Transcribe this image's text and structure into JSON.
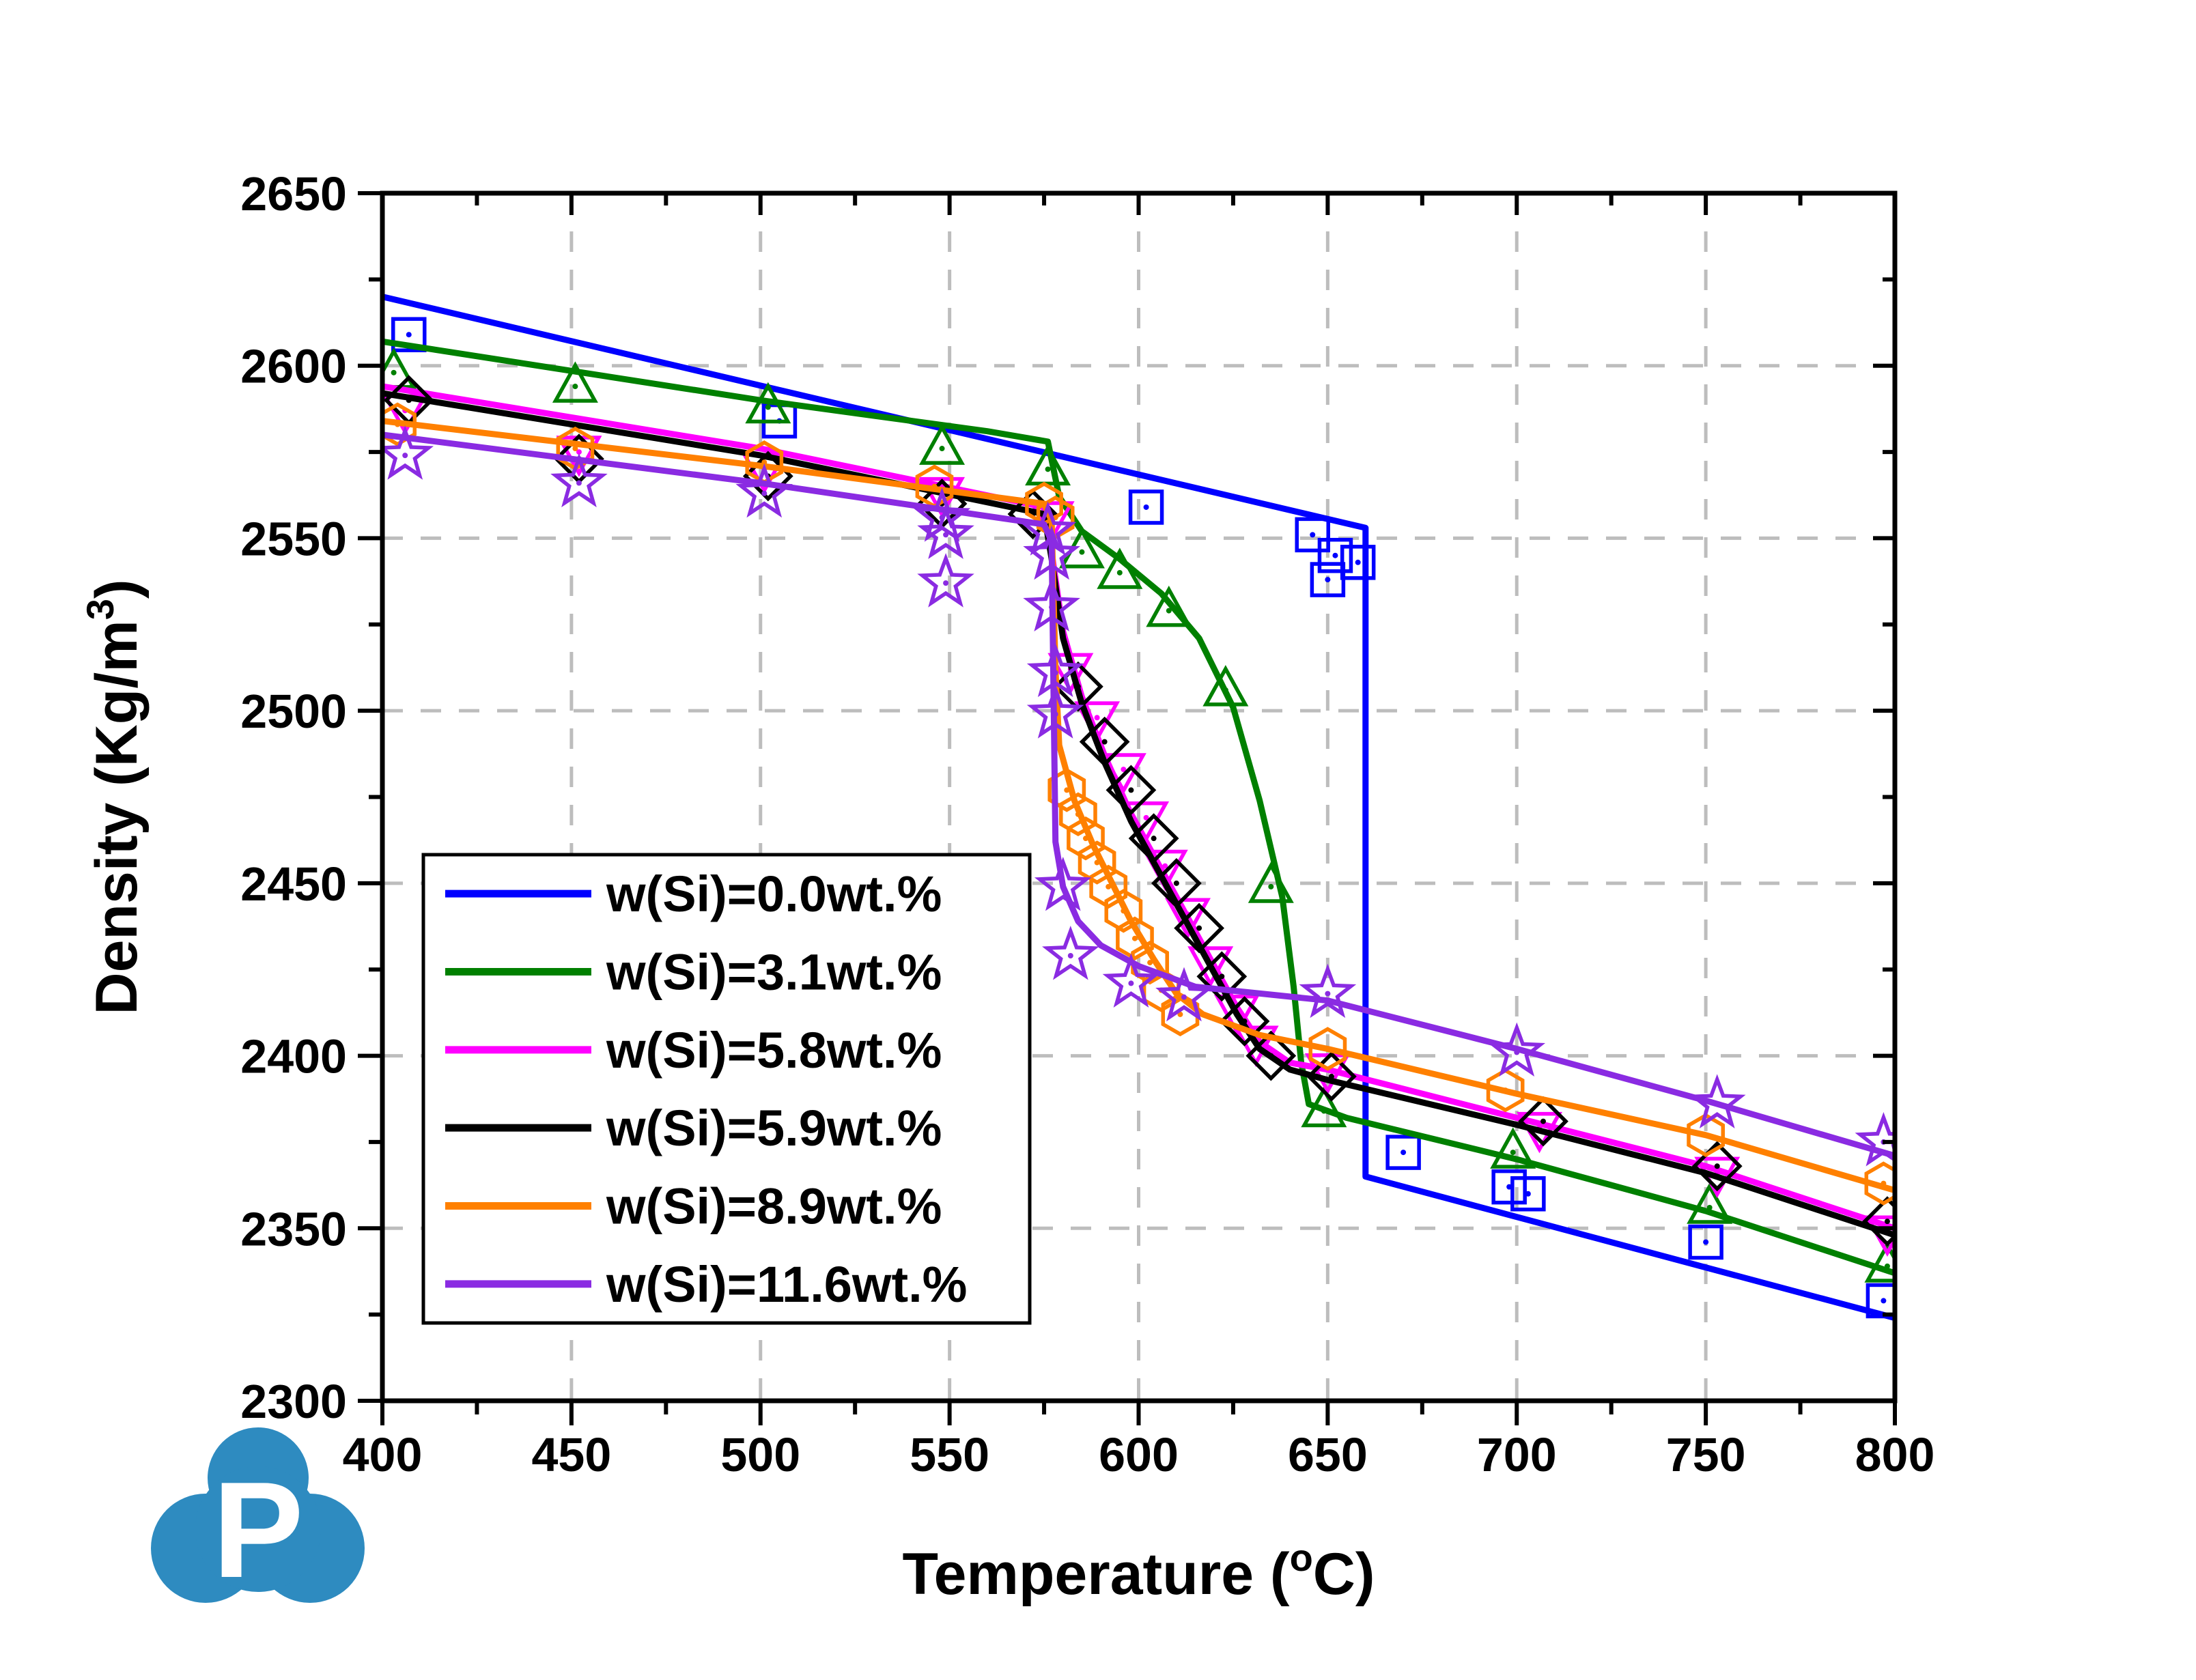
{
  "figure": {
    "background": "#FFFFFF",
    "frame_color": "#000000",
    "grid_color": "#BDBDBD",
    "text_color": "#000000"
  },
  "axes": {
    "x": {
      "title_prefix": "Temperature (",
      "title_sup": "o",
      "title_suffix": "C)",
      "min": 400,
      "max": 800,
      "major_step": 50,
      "minor_step": 25,
      "tick_labels": [
        "400",
        "450",
        "500",
        "550",
        "600",
        "650",
        "700",
        "750",
        "800"
      ]
    },
    "y": {
      "title_prefix": "Density (Kg/m",
      "title_sup": "3",
      "title_suffix": ")",
      "min": 2300,
      "max": 2650,
      "major_step": 50,
      "minor_step": 25,
      "tick_labels": [
        "2300",
        "2350",
        "2400",
        "2450",
        "2500",
        "2550",
        "2600",
        "2650"
      ]
    }
  },
  "legend": {
    "entries": [
      {
        "label": "w(Si)=0.0wt.%",
        "color": "#0000FF"
      },
      {
        "label": "w(Si)=3.1wt.%",
        "color": "#008000"
      },
      {
        "label": "w(Si)=5.8wt.%",
        "color": "#FF00FF"
      },
      {
        "label": "w(Si)=5.9wt.%",
        "color": "#000000"
      },
      {
        "label": "w(Si)=8.9wt.%",
        "color": "#FF8000"
      },
      {
        "label": "w(Si)=11.6wt.%",
        "color": "#8A2BE2"
      }
    ]
  },
  "logo": {
    "letter": "P",
    "color": "#2E8BC0"
  },
  "chart_data": {
    "type": "line",
    "title": "",
    "xlabel": "Temperature (°C)",
    "ylabel": "Density (Kg/m3)",
    "xlim": [
      400,
      800
    ],
    "ylim": [
      2300,
      2650
    ],
    "grid": true,
    "grid_style": "dashed",
    "legend_position": "center-left",
    "series": [
      {
        "name": "w(Si)=0.0wt.%",
        "color": "#0000FF",
        "marker": "square",
        "line": [
          [
            400,
            2620
          ],
          [
            660,
            2553
          ],
          [
            660,
            2365
          ],
          [
            800,
            2324
          ]
        ],
        "points": [
          [
            407,
            2609
          ],
          [
            505,
            2584
          ],
          [
            602,
            2559
          ],
          [
            646,
            2551
          ],
          [
            652,
            2545
          ],
          [
            658,
            2543
          ],
          [
            650,
            2538
          ],
          [
            670,
            2372
          ],
          [
            698,
            2362
          ],
          [
            703,
            2360
          ],
          [
            750,
            2346
          ],
          [
            797,
            2329
          ]
        ]
      },
      {
        "name": "w(Si)=3.1wt.%",
        "color": "#008000",
        "marker": "triangle-up",
        "line": [
          [
            400,
            2607
          ],
          [
            500,
            2590
          ],
          [
            560,
            2581
          ],
          [
            576,
            2578
          ],
          [
            579,
            2562
          ],
          [
            585,
            2552
          ],
          [
            595,
            2544
          ],
          [
            606,
            2534
          ],
          [
            616,
            2521
          ],
          [
            625,
            2501
          ],
          [
            632,
            2474
          ],
          [
            638,
            2446
          ],
          [
            641,
            2420
          ],
          [
            643,
            2398
          ],
          [
            645,
            2386
          ],
          [
            655,
            2382
          ],
          [
            700,
            2370
          ],
          [
            750,
            2355
          ],
          [
            800,
            2337
          ]
        ],
        "points": [
          [
            403,
            2598
          ],
          [
            451,
            2594
          ],
          [
            502,
            2588
          ],
          [
            548,
            2576
          ],
          [
            576,
            2570
          ],
          [
            585,
            2546
          ],
          [
            595,
            2540
          ],
          [
            608,
            2529
          ],
          [
            623,
            2506
          ],
          [
            635,
            2449
          ],
          [
            649,
            2384
          ],
          [
            699,
            2372
          ],
          [
            751,
            2356
          ],
          [
            798,
            2339
          ]
        ]
      },
      {
        "name": "w(Si)=5.8wt.%",
        "color": "#FF00FF",
        "marker": "triangle-down",
        "line": [
          [
            400,
            2594
          ],
          [
            500,
            2576
          ],
          [
            575,
            2559
          ],
          [
            577,
            2546
          ],
          [
            580,
            2523
          ],
          [
            585,
            2504
          ],
          [
            591,
            2487
          ],
          [
            598,
            2470
          ],
          [
            605,
            2456
          ],
          [
            612,
            2442
          ],
          [
            619,
            2428
          ],
          [
            626,
            2414
          ],
          [
            632,
            2404
          ],
          [
            640,
            2398
          ],
          [
            650,
            2396
          ],
          [
            700,
            2382
          ],
          [
            750,
            2368
          ],
          [
            800,
            2350
          ]
        ],
        "points": [
          [
            406,
            2587
          ],
          [
            452,
            2575
          ],
          [
            501,
            2570
          ],
          [
            548,
            2563
          ],
          [
            577,
            2556
          ],
          [
            582,
            2512
          ],
          [
            589,
            2498
          ],
          [
            596,
            2483
          ],
          [
            602,
            2469
          ],
          [
            607,
            2455
          ],
          [
            613,
            2441
          ],
          [
            619,
            2427
          ],
          [
            626,
            2413
          ],
          [
            631,
            2404
          ],
          [
            650,
            2396
          ],
          [
            706,
            2379
          ],
          [
            753,
            2366
          ],
          [
            798,
            2349
          ]
        ]
      },
      {
        "name": "w(Si)=5.9wt.%",
        "color": "#000000",
        "marker": "diamond",
        "line": [
          [
            400,
            2592
          ],
          [
            500,
            2574
          ],
          [
            575,
            2557
          ],
          [
            577,
            2544
          ],
          [
            580,
            2521
          ],
          [
            585,
            2502
          ],
          [
            591,
            2485
          ],
          [
            598,
            2468
          ],
          [
            605,
            2454
          ],
          [
            612,
            2440
          ],
          [
            619,
            2426
          ],
          [
            626,
            2412
          ],
          [
            632,
            2402
          ],
          [
            640,
            2396
          ],
          [
            650,
            2393
          ],
          [
            700,
            2380
          ],
          [
            750,
            2366
          ],
          [
            800,
            2348
          ]
        ],
        "points": [
          [
            407,
            2590
          ],
          [
            452,
            2573
          ],
          [
            502,
            2568
          ],
          [
            548,
            2560
          ],
          [
            572,
            2557
          ],
          [
            584,
            2507
          ],
          [
            591,
            2491
          ],
          [
            598,
            2477
          ],
          [
            604,
            2463
          ],
          [
            610,
            2450
          ],
          [
            616,
            2437
          ],
          [
            622,
            2423
          ],
          [
            628,
            2410
          ],
          [
            635,
            2400
          ],
          [
            651,
            2394
          ],
          [
            707,
            2381
          ],
          [
            753,
            2368
          ],
          [
            798,
            2352
          ]
        ]
      },
      {
        "name": "w(Si)=8.9wt.%",
        "color": "#FF8000",
        "marker": "hexagon",
        "line": [
          [
            400,
            2584
          ],
          [
            500,
            2571
          ],
          [
            575,
            2560
          ],
          [
            577,
            2555
          ],
          [
            578,
            2512
          ],
          [
            579,
            2490
          ],
          [
            583,
            2474
          ],
          [
            588,
            2461
          ],
          [
            593,
            2450
          ],
          [
            598,
            2439
          ],
          [
            604,
            2428
          ],
          [
            610,
            2418
          ],
          [
            617,
            2412
          ],
          [
            632,
            2406
          ],
          [
            650,
            2402
          ],
          [
            700,
            2389
          ],
          [
            750,
            2377
          ],
          [
            800,
            2361
          ]
        ],
        "points": [
          [
            404,
            2583
          ],
          [
            451,
            2576
          ],
          [
            501,
            2572
          ],
          [
            546,
            2565
          ],
          [
            575,
            2560
          ],
          [
            578,
            2556
          ],
          [
            581,
            2477
          ],
          [
            584,
            2470
          ],
          [
            586,
            2463
          ],
          [
            589,
            2456
          ],
          [
            592,
            2449
          ],
          [
            596,
            2442
          ],
          [
            599,
            2434
          ],
          [
            603,
            2427
          ],
          [
            606,
            2419
          ],
          [
            611,
            2412
          ],
          [
            650,
            2402
          ],
          [
            697,
            2390
          ],
          [
            750,
            2377
          ],
          [
            797,
            2363
          ]
        ]
      },
      {
        "name": "w(Si)=11.6wt.%",
        "color": "#8A2BE2",
        "marker": "star",
        "line": [
          [
            400,
            2580
          ],
          [
            500,
            2566
          ],
          [
            575,
            2554
          ],
          [
            577,
            2549
          ],
          [
            578,
            2462
          ],
          [
            580,
            2449
          ],
          [
            584,
            2439
          ],
          [
            590,
            2432
          ],
          [
            600,
            2426
          ],
          [
            615,
            2420
          ],
          [
            650,
            2416
          ],
          [
            700,
            2402
          ],
          [
            750,
            2387
          ],
          [
            800,
            2371
          ]
        ],
        "points": [
          [
            406,
            2574
          ],
          [
            452,
            2566
          ],
          [
            501,
            2563
          ],
          [
            548,
            2556
          ],
          [
            549,
            2551
          ],
          [
            549,
            2537
          ],
          [
            576,
            2552
          ],
          [
            577,
            2545
          ],
          [
            577,
            2530
          ],
          [
            578,
            2511
          ],
          [
            578,
            2499
          ],
          [
            580,
            2449
          ],
          [
            582,
            2429
          ],
          [
            598,
            2421
          ],
          [
            612,
            2417
          ],
          [
            650,
            2418
          ],
          [
            700,
            2401
          ],
          [
            753,
            2386
          ],
          [
            797,
            2375
          ]
        ]
      }
    ]
  }
}
